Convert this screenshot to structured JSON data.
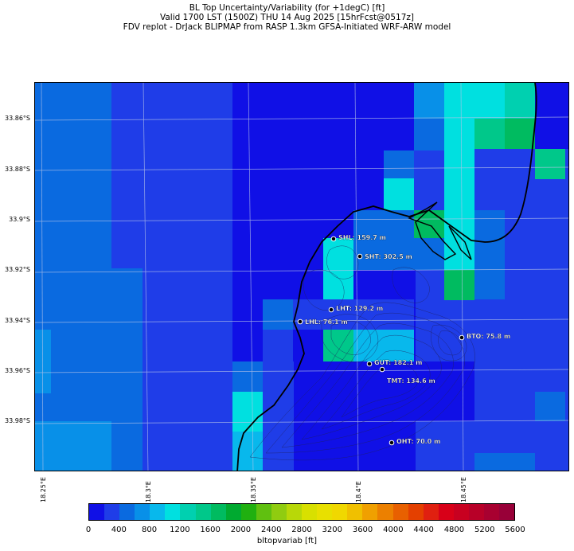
{
  "titles": {
    "line1": "BL Top Uncertainty/Variability (for +1degC) [ft]",
    "line2": "Valid 1700 LST (1500Z) THU 14 Aug 2025 [15hrFcst@0517z]",
    "line3": "FDV replot - DrJack BLIPMAP from RASP 1.3km GFSA-Initiated WRF-ARW model"
  },
  "lat_labels": [
    "33.86°S",
    "33.88°S",
    "33.9°S",
    "33.92°S",
    "33.94°S",
    "33.96°S",
    "33.98°S"
  ],
  "lon_labels": [
    "18.25°E",
    "18.3°E",
    "18.35°E",
    "18.4°E",
    "18.45°E"
  ],
  "stations": [
    {
      "label": "SHL: 159.7 m"
    },
    {
      "label": "SHT: 302.5 m"
    },
    {
      "label": "LHT: 129.2 m"
    },
    {
      "label": "LHL: 76.1 m"
    },
    {
      "label": "BTO: 75.8 m"
    },
    {
      "label": "GUT: 182.1 m"
    },
    {
      "label": "TMT: 134.6 m"
    },
    {
      "label": "OHT: 70.0 m"
    }
  ],
  "colorbar": {
    "ticks": [
      "0",
      "400",
      "800",
      "1200",
      "1600",
      "2000",
      "2400",
      "2800",
      "3200",
      "3600",
      "4000",
      "4400",
      "4800",
      "5200",
      "5600"
    ],
    "colors": [
      "#1010e6",
      "#1f3de8",
      "#0a6ae0",
      "#0890e8",
      "#08b8ec",
      "#00e0e0",
      "#00d0b0",
      "#00c88a",
      "#00bb60",
      "#00aa30",
      "#20b010",
      "#60c010",
      "#90cc10",
      "#b8d808",
      "#d8e000",
      "#e8e000",
      "#f0d800",
      "#f0c000",
      "#f0a000",
      "#ec8000",
      "#e86000",
      "#e44000",
      "#e02010",
      "#d80018",
      "#c80020",
      "#b80028",
      "#a80030",
      "#980038"
    ],
    "label": "bltopvariab [ft]"
  }
}
